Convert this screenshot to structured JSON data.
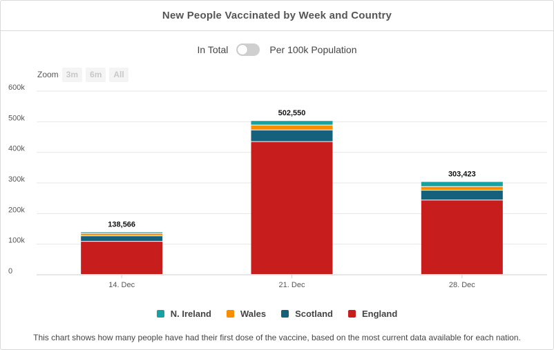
{
  "header": {
    "title": "New People Vaccinated by Week and Country"
  },
  "toggle": {
    "left_label": "In Total",
    "right_label": "Per 100k Population",
    "state": "off"
  },
  "zoom": {
    "label": "Zoom",
    "buttons": [
      "3m",
      "6m",
      "All"
    ]
  },
  "colors": {
    "england": "#c71e1d",
    "scotland": "#15607a",
    "wales": "#fa8c00",
    "n_ireland": "#18a1a1",
    "grid": "#e6e6e6",
    "axis": "#cccccc"
  },
  "chart_data": {
    "type": "bar",
    "stacked": true,
    "title": "New People Vaccinated by Week and Country",
    "categories": [
      "14. Dec",
      "21. Dec",
      "28. Dec"
    ],
    "series": [
      {
        "name": "England",
        "color": "#c71e1d",
        "values": [
          108000,
          434000,
          243000
        ]
      },
      {
        "name": "Scotland",
        "color": "#15607a",
        "values": [
          18000,
          38000,
          32000
        ]
      },
      {
        "name": "Wales",
        "color": "#fa8c00",
        "values": [
          7500,
          16000,
          12000
        ]
      },
      {
        "name": "N. Ireland",
        "color": "#18a1a1",
        "values": [
          5066,
          14550,
          16423
        ]
      }
    ],
    "totals": [
      138566,
      502550,
      303423
    ],
    "total_labels": [
      "138,566",
      "502,550",
      "303,423"
    ],
    "ylim": [
      0,
      600000
    ],
    "yticks": [
      0,
      100000,
      200000,
      300000,
      400000,
      500000,
      600000
    ],
    "ytick_labels": [
      "0",
      "100k",
      "200k",
      "300k",
      "400k",
      "500k",
      "600k"
    ],
    "xlabel": "",
    "ylabel": "",
    "grid": true,
    "legend_order": [
      "N. Ireland",
      "Wales",
      "Scotland",
      "England"
    ],
    "legend_position": "bottom-center"
  },
  "caption": "This chart shows how many people have had their first dose of the vaccine, based on the most current data available for each nation."
}
